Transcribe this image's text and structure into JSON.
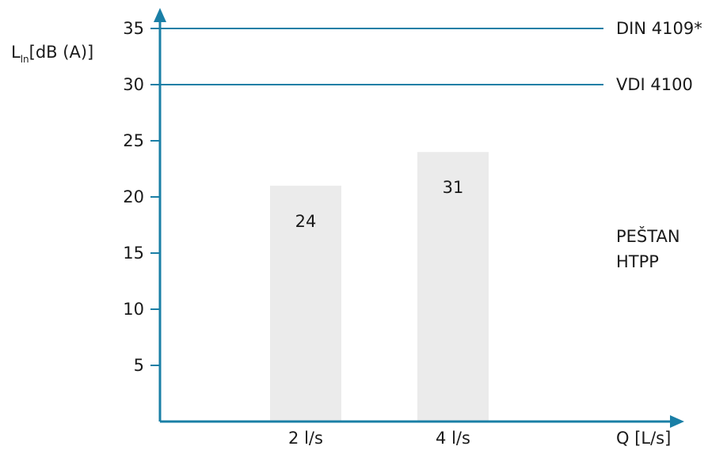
{
  "chart_data": {
    "type": "bar",
    "ylabel": {
      "main": "L",
      "sub": "ln",
      "unit": "[dB (A)]"
    },
    "xlabel": "Q [L/s]",
    "categories": [
      "2 l/s",
      "4 l/s"
    ],
    "values": [
      21,
      24
    ],
    "data_labels": [
      "24",
      "31"
    ],
    "ylim": [
      0,
      37
    ],
    "yticks": [
      5,
      10,
      15,
      20,
      25,
      30,
      35
    ],
    "grid": false,
    "reference_lines": [
      {
        "label": "DIN 4109*",
        "value": 35
      },
      {
        "label": "VDI 4100",
        "value": 30
      }
    ],
    "legend": {
      "lines": [
        "PEŠTAN",
        "HTPP"
      ],
      "placement": "right"
    },
    "colors": {
      "axis": "#1a7fa6",
      "reference": "#1a7fa6",
      "bar": "#ebebeb",
      "text": "#1a1a1a"
    }
  }
}
